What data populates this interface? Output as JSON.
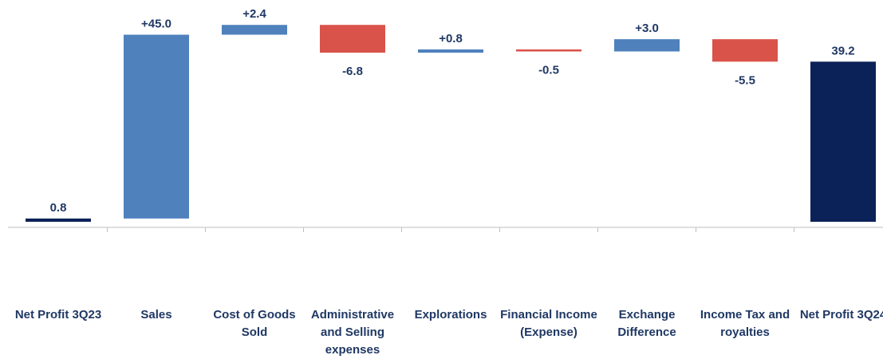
{
  "chart_data": {
    "type": "waterfall",
    "categories": [
      "Net Profit 3Q23",
      "Sales",
      "Cost of Goods Sold",
      "Administrative and Selling expenses",
      "Explorations",
      "Financial Income (Expense)",
      "Exchange Difference",
      "Income Tax and royalties",
      "Net Profit 3Q24"
    ],
    "values": [
      0.8,
      45.0,
      2.4,
      -6.8,
      0.8,
      -0.5,
      3.0,
      -5.5,
      39.2
    ],
    "value_labels": [
      "0.8",
      "+45.0",
      "+2.4",
      "-6.8",
      "+0.8",
      "-0.5",
      "+3.0",
      "-5.5",
      "39.2"
    ],
    "measures": [
      "total",
      "relative",
      "relative",
      "relative",
      "relative",
      "relative",
      "relative",
      "relative",
      "total"
    ],
    "total_color": "#0b2258",
    "increase_color": "#4f81bd",
    "decrease_color": "#d9534a"
  }
}
